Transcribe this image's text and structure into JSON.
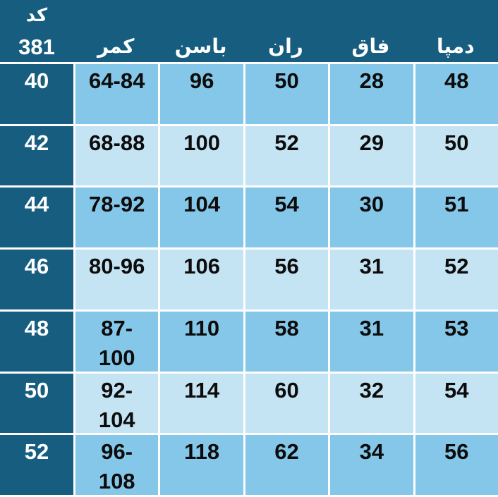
{
  "header": {
    "code_label": "کد",
    "code_number": "381",
    "columns": [
      "کمر",
      "باسن",
      "ران",
      "فاق",
      "دمپا"
    ]
  },
  "rows": [
    {
      "size": "40",
      "waist": "64-84",
      "hip": "96",
      "thigh": "50",
      "rise": "28",
      "hem": "48"
    },
    {
      "size": "42",
      "waist": "68-88",
      "hip": "100",
      "thigh": "52",
      "rise": "29",
      "hem": "50"
    },
    {
      "size": "44",
      "waist": "78-92",
      "hip": "104",
      "thigh": "54",
      "rise": "30",
      "hem": "51"
    },
    {
      "size": "46",
      "waist": "80-96",
      "hip": "106",
      "thigh": "56",
      "rise": "31",
      "hem": "52"
    },
    {
      "size": "48",
      "waist": "87-\n100",
      "hip": "110",
      "thigh": "58",
      "rise": "31",
      "hem": "53"
    },
    {
      "size": "50",
      "waist": "92-\n104",
      "hip": "114",
      "thigh": "60",
      "rise": "32",
      "hem": "54"
    },
    {
      "size": "52",
      "waist": "96-\n108",
      "hip": "118",
      "thigh": "62",
      "rise": "34",
      "hem": "56"
    }
  ],
  "colors": {
    "header_bg": "#175d80",
    "size_column_bg": "#175d80",
    "row_medium": "#85c7e8",
    "row_light": "#c5e4f3",
    "grid_line": "#ffffff",
    "text_dark": "#0c0c0c",
    "text_light": "#ffffff"
  },
  "chart_data": {
    "type": "table",
    "title": "کد 381",
    "columns": [
      "کد",
      "کمر",
      "باسن",
      "ران",
      "فاق",
      "دمپا"
    ],
    "rows": [
      [
        "40",
        "64-84",
        "96",
        "50",
        "28",
        "48"
      ],
      [
        "42",
        "68-88",
        "100",
        "52",
        "29",
        "50"
      ],
      [
        "44",
        "78-92",
        "104",
        "54",
        "30",
        "51"
      ],
      [
        "46",
        "80-96",
        "106",
        "56",
        "31",
        "52"
      ],
      [
        "48",
        "87-100",
        "110",
        "58",
        "31",
        "53"
      ],
      [
        "50",
        "92-104",
        "114",
        "60",
        "32",
        "54"
      ],
      [
        "52",
        "96-108",
        "118",
        "62",
        "34",
        "56"
      ]
    ],
    "layout": {
      "grid": true,
      "direction": "rtl-labels",
      "legend": "none"
    }
  }
}
